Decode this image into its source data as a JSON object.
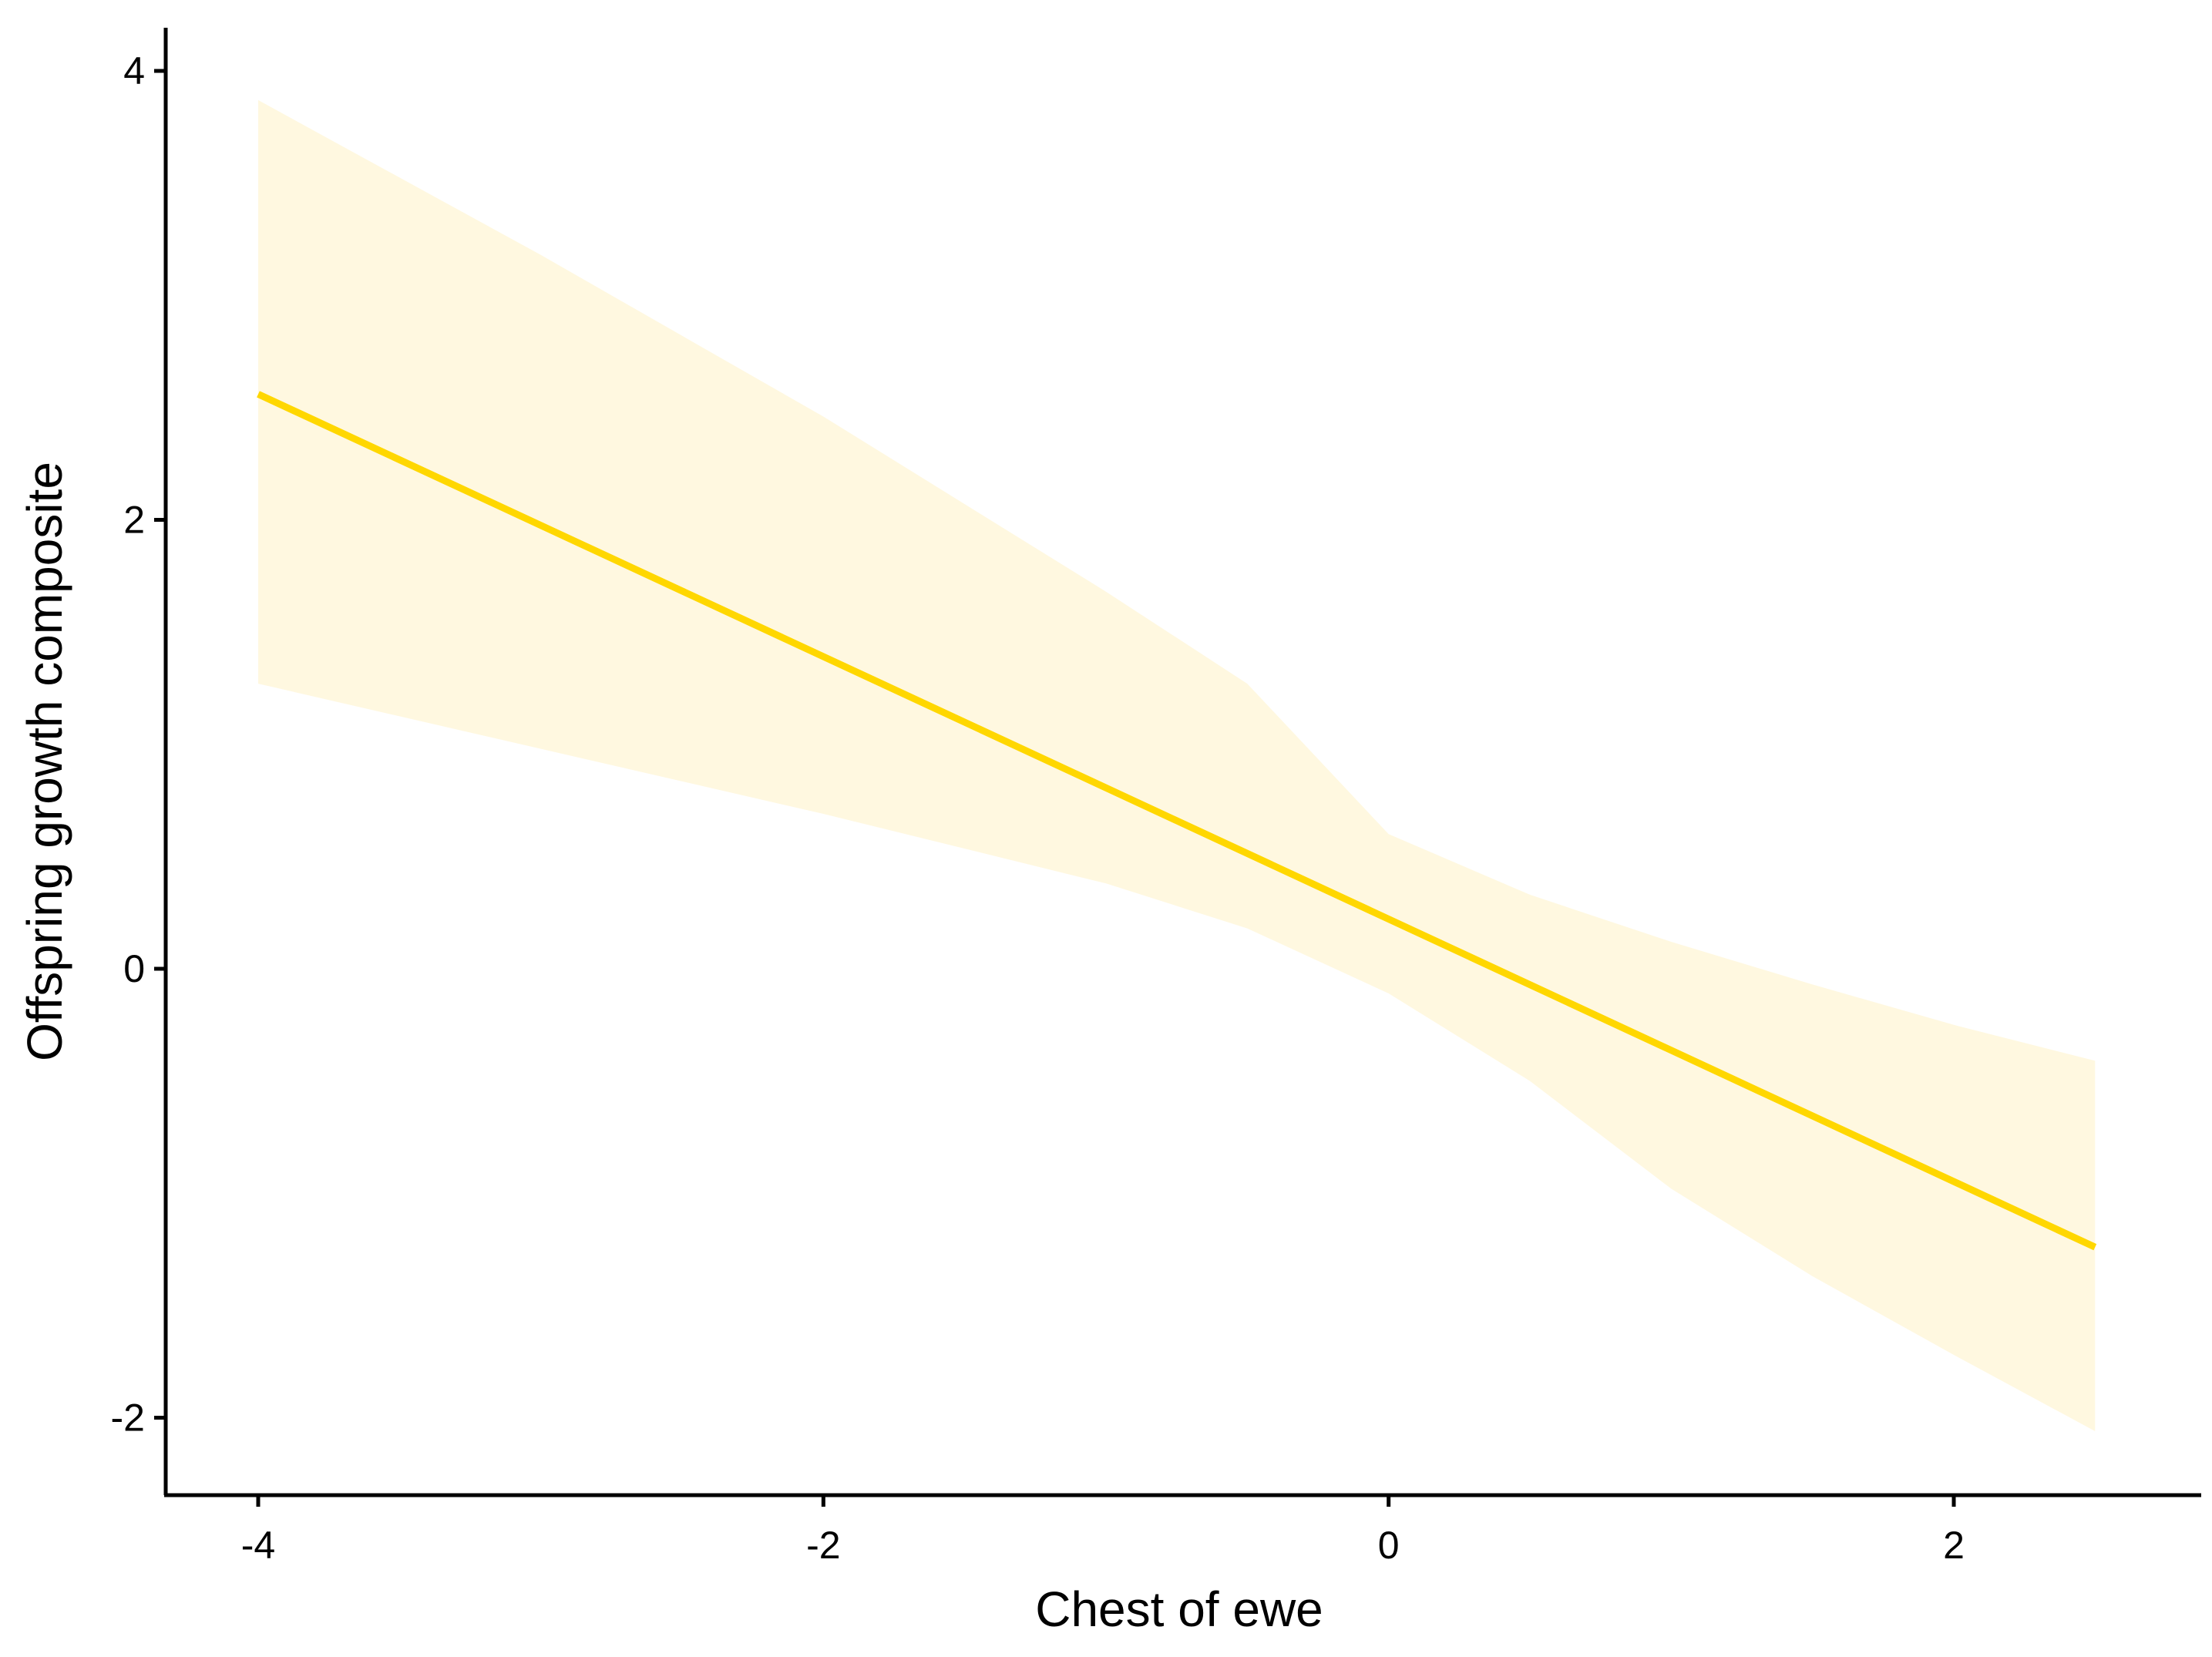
{
  "chart_data": {
    "type": "line",
    "xlabel": "Chest of ewe",
    "ylabel": "Offspring growth composite",
    "xlim": [
      -4.32,
      2.83
    ],
    "ylim": [
      -2.35,
      4.2
    ],
    "x_ticks": [
      -4,
      -2,
      0,
      2
    ],
    "y_ticks": [
      -2,
      0,
      2,
      4
    ],
    "x_tick_labels": [
      "-4",
      "-2",
      "0",
      "2"
    ],
    "y_tick_labels": [
      "-2",
      "0",
      "2",
      "4"
    ],
    "grid": false,
    "legend": "none",
    "colors": {
      "line": "#FFD700",
      "ribbon": "#FFF8E0"
    },
    "series": [
      {
        "x": [
          -4,
          2.5
        ],
        "y": [
          2.56,
          -1.24
        ]
      }
    ],
    "confidence_band": {
      "x": [
        -4.0,
        -3.0,
        -2.0,
        -1.0,
        -0.5,
        0.0,
        0.5,
        1.0,
        1.5,
        2.0,
        2.5
      ],
      "upper": [
        3.87,
        3.18,
        2.46,
        1.68,
        1.27,
        0.6,
        0.33,
        0.12,
        -0.07,
        -0.25,
        -0.41
      ],
      "lower": [
        1.27,
        0.98,
        0.69,
        0.38,
        0.18,
        -0.11,
        -0.5,
        -0.98,
        -1.37,
        -1.72,
        -2.06
      ]
    }
  }
}
